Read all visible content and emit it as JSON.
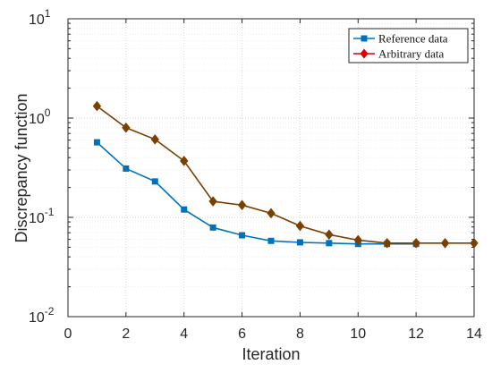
{
  "chart_data": {
    "type": "line",
    "xlabel": "Iteration",
    "ylabel": "Discrepancy function",
    "xlim": [
      0,
      14
    ],
    "ylim": [
      0.01,
      10
    ],
    "y_scale": "log",
    "grid": true,
    "legend_position": "top-right",
    "x_ticks": [
      "0",
      "2",
      "4",
      "6",
      "8",
      "10",
      "12",
      "14"
    ],
    "y_ticks": [
      {
        "base": "10",
        "exp": "1"
      },
      {
        "base": "10",
        "exp": "0"
      },
      {
        "base": "10",
        "exp": "-1"
      },
      {
        "base": "10",
        "exp": "-2"
      }
    ],
    "series": [
      {
        "name": "Reference data",
        "color": "#0072BD",
        "marker": "square",
        "x": [
          1,
          2,
          3,
          4,
          5,
          6,
          7,
          8,
          9,
          10,
          11,
          12
        ],
        "y": [
          0.57,
          0.31,
          0.23,
          0.12,
          0.079,
          0.066,
          0.058,
          0.056,
          0.055,
          0.054,
          0.054,
          0.054
        ]
      },
      {
        "name": "Arbitrary data",
        "color": "#E00000",
        "line_color": "#7B3F00",
        "marker": "diamond",
        "x": [
          1,
          2,
          3,
          4,
          5,
          6,
          7,
          8,
          9,
          10,
          11,
          12,
          13,
          14
        ],
        "y": [
          1.32,
          0.8,
          0.61,
          0.37,
          0.145,
          0.133,
          0.11,
          0.082,
          0.067,
          0.059,
          0.055,
          0.055,
          0.055,
          0.055
        ]
      }
    ]
  }
}
